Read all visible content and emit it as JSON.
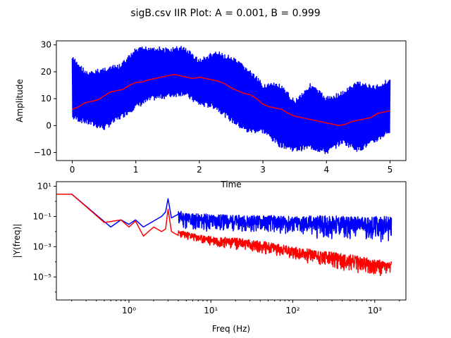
{
  "figure": {
    "title": "sigB.csv IIR Plot: A = 0.001, B = 0.999"
  },
  "chart_data": [
    {
      "type": "line",
      "xlabel": "Time",
      "ylabel": "Amplitude",
      "xlim": [
        -0.25,
        5.25
      ],
      "ylim": [
        -13,
        31.5
      ],
      "xticks": [
        0,
        1,
        2,
        3,
        4,
        5
      ],
      "xtick_labels": [
        "0",
        "1",
        "2",
        "3",
        "4",
        "5"
      ],
      "yticks": [
        -10,
        0,
        10,
        20,
        30
      ],
      "ytick_labels": [
        "−10",
        "0",
        "10",
        "20",
        "30"
      ],
      "grid": false,
      "legend": "none",
      "series": [
        {
          "kind": "raw-signal-envelope",
          "color": "#0000ff",
          "x": [
            0,
            0.25,
            0.5,
            0.75,
            1.0,
            1.25,
            1.5,
            1.75,
            2.0,
            2.25,
            2.5,
            2.75,
            3.0,
            3.25,
            3.5,
            3.75,
            4.0,
            4.25,
            4.5,
            4.75,
            5.0
          ],
          "upper": [
            26,
            20,
            22,
            23,
            29,
            30,
            29,
            30,
            25,
            28,
            26,
            22,
            16,
            16,
            10,
            16,
            11,
            13,
            17,
            15,
            18
          ],
          "lower": [
            2,
            0,
            -2,
            2,
            6,
            9,
            10,
            11,
            7,
            6,
            1,
            -3,
            -3,
            -8,
            -10,
            -9,
            -11,
            -7,
            -10,
            -7,
            -3
          ]
        },
        {
          "kind": "filtered",
          "color": "#ff0000",
          "x": [
            0,
            0.1,
            0.2,
            0.3,
            0.4,
            0.5,
            0.6,
            0.7,
            0.8,
            0.9,
            1.0,
            1.1,
            1.2,
            1.3,
            1.4,
            1.5,
            1.6,
            1.7,
            1.8,
            1.9,
            2.0,
            2.1,
            2.2,
            2.3,
            2.4,
            2.5,
            2.6,
            2.7,
            2.8,
            2.9,
            3.0,
            3.1,
            3.2,
            3.3,
            3.4,
            3.5,
            3.6,
            3.7,
            3.8,
            3.9,
            4.0,
            4.1,
            4.2,
            4.3,
            4.4,
            4.5,
            4.6,
            4.7,
            4.8,
            4.9,
            5.0
          ],
          "y": [
            6,
            7,
            8.5,
            9,
            9.5,
            11,
            12.5,
            13,
            13.5,
            15,
            16,
            16.2,
            17,
            17.5,
            18,
            18.5,
            19,
            18.5,
            18,
            17.5,
            18,
            17.5,
            17,
            16.5,
            15.5,
            14,
            13,
            12,
            11.5,
            10,
            8,
            7,
            6.5,
            6,
            4.5,
            3.5,
            3,
            2.5,
            2,
            1.5,
            1,
            0.5,
            0,
            0.5,
            1.5,
            2,
            2.5,
            3,
            4.5,
            5,
            5.5
          ]
        }
      ]
    },
    {
      "type": "line",
      "xlabel": "Freq (Hz)",
      "ylabel": "|Y(freq)|",
      "xscale": "log",
      "yscale": "log",
      "xlim": [
        0.13,
        2400
      ],
      "ylim": [
        3e-07,
        20
      ],
      "xticks": [
        1,
        10,
        100,
        1000
      ],
      "xtick_labels": [
        "10⁰",
        "10¹",
        "10²",
        "10³"
      ],
      "yticks": [
        1e-05,
        0.001,
        0.1,
        10
      ],
      "ytick_labels": [
        "10⁻⁵",
        "10⁻³",
        "10⁻¹",
        "10¹"
      ],
      "grid": false,
      "legend": "none",
      "series": [
        {
          "kind": "raw-spectrum",
          "color": "#0000ff",
          "x": [
            0.13,
            0.2,
            0.6,
            0.8,
            1.0,
            1.2,
            1.5,
            2.0,
            2.5,
            2.8,
            3.0,
            3.3,
            4,
            5,
            7,
            10,
            20,
            50,
            100,
            200,
            500,
            1000,
            1600
          ],
          "y": [
            3,
            3,
            0.02,
            0.06,
            0.03,
            0.06,
            0.02,
            0.05,
            0.1,
            0.2,
            1.5,
            0.08,
            0.2,
            0.1,
            0.05,
            0.05,
            0.06,
            0.04,
            0.05,
            0.04,
            0.05,
            0.05,
            0.06
          ],
          "band_low": [
            null,
            null,
            null,
            null,
            null,
            null,
            null,
            null,
            null,
            null,
            null,
            null,
            0.02,
            0.01,
            0.01,
            0.008,
            0.01,
            0.008,
            0.005,
            0.003,
            0.003,
            0.002,
            0.002
          ],
          "band_high": [
            null,
            null,
            null,
            null,
            null,
            null,
            null,
            null,
            null,
            null,
            null,
            null,
            0.25,
            0.2,
            0.15,
            0.15,
            0.12,
            0.12,
            0.1,
            0.12,
            0.1,
            0.1,
            0.1
          ]
        },
        {
          "kind": "filtered-spectrum",
          "color": "#ff0000",
          "x": [
            0.13,
            0.2,
            0.5,
            0.8,
            1.0,
            1.2,
            1.5,
            2.0,
            2.5,
            2.8,
            3.0,
            3.3,
            4,
            5,
            7,
            10,
            20,
            50,
            100,
            200,
            500,
            1000,
            1600
          ],
          "y": [
            3,
            3,
            0.04,
            0.06,
            0.02,
            0.05,
            0.005,
            0.02,
            0.01,
            0.015,
            0.3,
            0.01,
            0.008,
            0.006,
            0.004,
            0.003,
            0.002,
            0.001,
            0.0006,
            0.0002,
            0.0001,
            4e-05,
            3e-05
          ],
          "band_low": [
            null,
            null,
            null,
            null,
            null,
            null,
            null,
            null,
            null,
            null,
            null,
            null,
            0.004,
            0.003,
            0.0015,
            0.001,
            0.0006,
            0.0003,
            0.00015,
            5e-05,
            2e-05,
            1e-05,
            1e-05
          ],
          "band_high": [
            null,
            null,
            null,
            null,
            null,
            null,
            null,
            null,
            null,
            null,
            null,
            null,
            0.012,
            0.01,
            0.006,
            0.005,
            0.004,
            0.002,
            0.001,
            0.0006,
            0.0003,
            0.00015,
            0.0001
          ]
        }
      ]
    }
  ]
}
